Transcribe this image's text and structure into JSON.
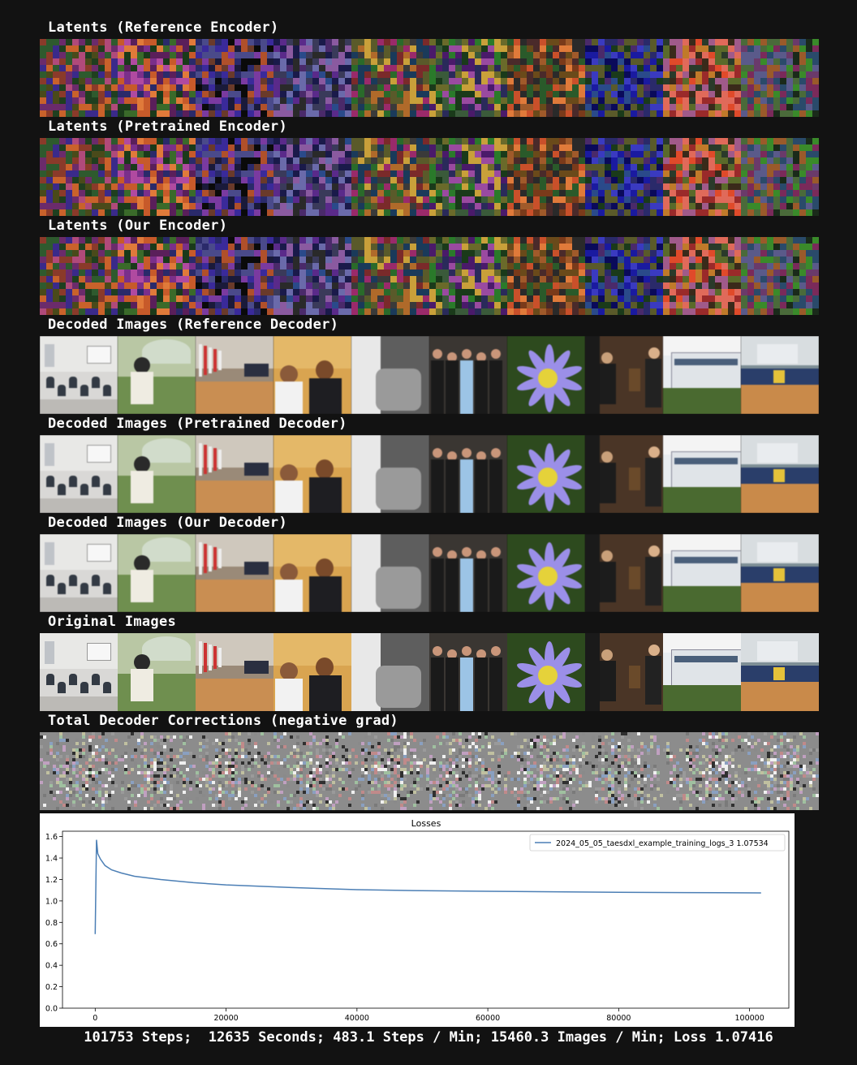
{
  "sections": {
    "latents_ref": "Latents (Reference Encoder)",
    "latents_pre": "Latents (Pretrained Encoder)",
    "latents_our": "Latents (Our Encoder)",
    "dec_ref": "Decoded Images (Reference Decoder)",
    "dec_pre": "Decoded Images (Pretrained Decoder)",
    "dec_our": "Decoded Images (Our Decoder)",
    "original": "Original Images",
    "corrections": "Total Decoder Corrections (negative grad)"
  },
  "image_tiles": [
    {
      "name": "classroom-scene",
      "bg": "#d9d8d6",
      "accent": "#333a44"
    },
    {
      "name": "woman-umbrella-field",
      "bg": "#b9c7a4",
      "accent": "#5a7840"
    },
    {
      "name": "hall-with-flags",
      "bg": "#9a8a78",
      "accent": "#c33"
    },
    {
      "name": "men-school-banner",
      "bg": "#d9a450",
      "accent": "#222"
    },
    {
      "name": "bw-worker",
      "bg": "#7a7a7a",
      "accent": "#ddd"
    },
    {
      "name": "women-group-dress",
      "bg": "#3a3632",
      "accent": "#9cc4e6"
    },
    {
      "name": "purple-flower",
      "bg": "#2d4a1e",
      "accent": "#9b8fe8"
    },
    {
      "name": "men-suits-room",
      "bg": "#4a3526",
      "accent": "#1c1c1c"
    },
    {
      "name": "white-building",
      "bg": "#e8ecef",
      "accent": "#3a5a28"
    },
    {
      "name": "racetrack-banner",
      "bg": "#7e8f96",
      "accent": "#e5c23a"
    }
  ],
  "chart_data": {
    "type": "line",
    "title": "Losses",
    "xlabel": "",
    "ylabel": "",
    "xlim": [
      -5000,
      106000
    ],
    "ylim": [
      0.0,
      1.65
    ],
    "xticks": [
      0,
      20000,
      40000,
      60000,
      80000,
      100000
    ],
    "yticks": [
      0.0,
      0.2,
      0.4,
      0.6,
      0.8,
      1.0,
      1.2,
      1.4,
      1.6
    ],
    "grid": false,
    "legend_position": "top-right",
    "series": [
      {
        "name": "2024_05_05_taesdxl_example_training_logs_3 1.07534",
        "color": "#4c7fb5",
        "x": [
          0,
          200,
          400,
          800,
          1500,
          2500,
          4000,
          6000,
          8000,
          10000,
          15000,
          20000,
          30000,
          40000,
          50000,
          60000,
          70000,
          80000,
          90000,
          101753
        ],
        "y": [
          0.69,
          1.57,
          1.44,
          1.39,
          1.33,
          1.29,
          1.26,
          1.23,
          1.215,
          1.2,
          1.17,
          1.15,
          1.125,
          1.105,
          1.095,
          1.09,
          1.085,
          1.08,
          1.078,
          1.075
        ]
      }
    ]
  },
  "footer": "101753 Steps;  12635 Seconds; 483.1 Steps / Min; 15460.3 Images / Min; Loss 1.07416"
}
